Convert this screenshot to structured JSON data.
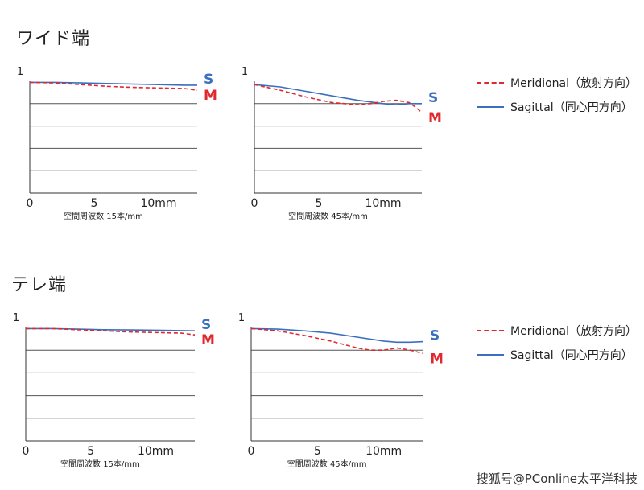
{
  "sections": [
    {
      "title": "ワイド端",
      "legend": {
        "meridional": "Meridional（放射方向）",
        "sagittal": "Sagittal（同心円方向）"
      }
    },
    {
      "title": "テレ端",
      "legend": {
        "meridional": "Meridional（放射方向）",
        "sagittal": "Sagittal（同心円方向）"
      }
    }
  ],
  "colors": {
    "sagittal": "#3a6fc0",
    "meridional": "#e0282e",
    "grid": "#555555",
    "axis": "#333333"
  },
  "chart_data": [
    {
      "type": "line",
      "title": "",
      "xlabel": "空間周波数 15本/mm",
      "ylabel": "",
      "xlim": [
        0,
        13
      ],
      "ylim": [
        0,
        1
      ],
      "yticks": [
        "1"
      ],
      "xticks": [
        "0",
        "5",
        "10mm"
      ],
      "xtick_values": [
        0,
        5,
        10
      ],
      "series": [
        {
          "key": "S",
          "label": "S",
          "style": "solid",
          "x": [
            0,
            2,
            4,
            6,
            8,
            10,
            12,
            13
          ],
          "y": [
            0.99,
            0.99,
            0.985,
            0.98,
            0.975,
            0.97,
            0.965,
            0.965
          ]
        },
        {
          "key": "M",
          "label": "M",
          "style": "dashed",
          "x": [
            0,
            2,
            4,
            6,
            8,
            10,
            12,
            13
          ],
          "y": [
            0.99,
            0.985,
            0.97,
            0.955,
            0.945,
            0.94,
            0.935,
            0.92
          ]
        }
      ]
    },
    {
      "type": "line",
      "title": "",
      "xlabel": "空間周波数 45本/mm",
      "ylabel": "",
      "xlim": [
        0,
        13
      ],
      "ylim": [
        0,
        1
      ],
      "yticks": [
        "1"
      ],
      "xticks": [
        "0",
        "5",
        "10mm"
      ],
      "xtick_values": [
        0,
        5,
        10
      ],
      "series": [
        {
          "key": "S",
          "label": "S",
          "style": "solid",
          "x": [
            0,
            2,
            4,
            6,
            8,
            10,
            11,
            12,
            13
          ],
          "y": [
            0.97,
            0.95,
            0.91,
            0.87,
            0.83,
            0.8,
            0.79,
            0.8,
            0.8
          ]
        },
        {
          "key": "M",
          "label": "M",
          "style": "dashed",
          "x": [
            0,
            2,
            4,
            6,
            7,
            8,
            9,
            10,
            11,
            12,
            12.5,
            13
          ],
          "y": [
            0.97,
            0.92,
            0.86,
            0.81,
            0.8,
            0.79,
            0.8,
            0.82,
            0.83,
            0.81,
            0.77,
            0.72
          ]
        }
      ]
    },
    {
      "type": "line",
      "title": "",
      "xlabel": "空間周波数 15本/mm",
      "ylabel": "",
      "xlim": [
        0,
        13
      ],
      "ylim": [
        0,
        1
      ],
      "yticks": [
        "1"
      ],
      "xticks": [
        "0",
        "5",
        "10mm"
      ],
      "xtick_values": [
        0,
        5,
        10
      ],
      "series": [
        {
          "key": "S",
          "label": "S",
          "style": "solid",
          "x": [
            0,
            2,
            4,
            6,
            8,
            10,
            12,
            13
          ],
          "y": [
            0.99,
            0.99,
            0.985,
            0.98,
            0.978,
            0.976,
            0.972,
            0.97
          ]
        },
        {
          "key": "M",
          "label": "M",
          "style": "dashed",
          "x": [
            0,
            2,
            4,
            6,
            8,
            10,
            12,
            13
          ],
          "y": [
            0.99,
            0.99,
            0.98,
            0.97,
            0.96,
            0.955,
            0.95,
            0.935
          ]
        }
      ]
    },
    {
      "type": "line",
      "title": "",
      "xlabel": "空間周波数 45本/mm",
      "ylabel": "",
      "xlim": [
        0,
        13
      ],
      "ylim": [
        0,
        1
      ],
      "yticks": [
        "1"
      ],
      "xticks": [
        "0",
        "5",
        "10mm"
      ],
      "xtick_values": [
        0,
        5,
        10
      ],
      "series": [
        {
          "key": "S",
          "label": "S",
          "style": "solid",
          "x": [
            0,
            2,
            4,
            6,
            8,
            10,
            11,
            12,
            13
          ],
          "y": [
            0.99,
            0.985,
            0.97,
            0.95,
            0.915,
            0.88,
            0.87,
            0.87,
            0.875
          ]
        },
        {
          "key": "M",
          "label": "M",
          "style": "dashed",
          "x": [
            0,
            2,
            4,
            6,
            8,
            9,
            10,
            11,
            12,
            13
          ],
          "y": [
            0.99,
            0.97,
            0.93,
            0.88,
            0.82,
            0.8,
            0.8,
            0.82,
            0.8,
            0.77
          ]
        }
      ]
    }
  ],
  "watermark": "搜狐号@PConline太平洋科技"
}
